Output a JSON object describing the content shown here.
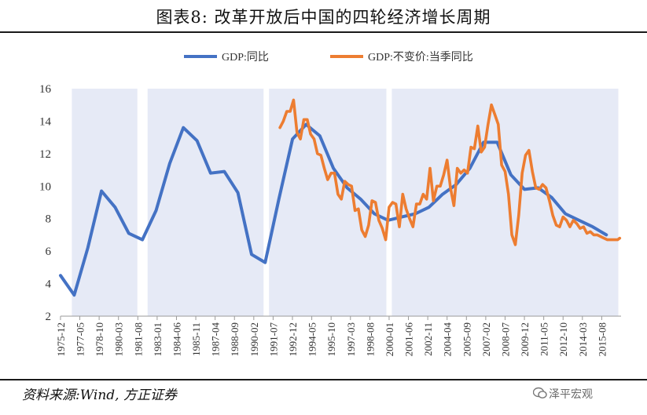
{
  "title": "图表8:   改革开放后中国的四轮经济增长周期",
  "source": "资料来源:Wind, 方正证券",
  "watermark": "泽平宏观",
  "chart_data": {
    "type": "line",
    "title": "图表8:   改革开放后中国的四轮经济增长周期",
    "xlabel": "",
    "ylabel": "",
    "ylim": [
      2,
      16
    ],
    "y_ticks": [
      "2",
      "4",
      "6",
      "8",
      "10",
      "12",
      "14",
      "16"
    ],
    "x_tick_labels": [
      "1975-12",
      "1977-05",
      "1978-10",
      "1980-03",
      "1981-08",
      "1983-01",
      "1984-06",
      "1985-11",
      "1987-04",
      "1988-09",
      "1990-02",
      "1991-07",
      "1992-12",
      "1994-05",
      "1995-10",
      "1997-03",
      "1998-08",
      "2000-01",
      "2001-06",
      "2002-11",
      "2004-04",
      "2005-09",
      "2007-02",
      "2008-07",
      "2009-12",
      "2011-05",
      "2012-10",
      "2014-03",
      "2015-08"
    ],
    "x_range": [
      1975.92,
      2017.0
    ],
    "legend_position": "top-center",
    "shaded_periods": [
      [
        1976.75,
        1981.55
      ],
      [
        1982.3,
        1990.8
      ],
      [
        1991.2,
        1999.8
      ],
      [
        2000.2,
        2016.8
      ]
    ],
    "series": [
      {
        "name": "GDP:同比",
        "color": "#4472C4",
        "points": [
          [
            1975.92,
            4.5
          ],
          [
            1976.92,
            3.3
          ],
          [
            1977.92,
            6.2
          ],
          [
            1978.92,
            9.7
          ],
          [
            1979.92,
            8.7
          ],
          [
            1980.92,
            7.1
          ],
          [
            1981.92,
            6.7
          ],
          [
            1982.92,
            8.5
          ],
          [
            1983.92,
            11.4
          ],
          [
            1984.92,
            13.6
          ],
          [
            1985.92,
            12.8
          ],
          [
            1986.92,
            10.8
          ],
          [
            1987.92,
            10.9
          ],
          [
            1988.92,
            9.6
          ],
          [
            1989.92,
            5.8
          ],
          [
            1990.92,
            5.3
          ],
          [
            1991.92,
            9.2
          ],
          [
            1992.92,
            12.9
          ],
          [
            1993.92,
            13.8
          ],
          [
            1994.92,
            13.1
          ],
          [
            1995.92,
            11.1
          ],
          [
            1996.92,
            9.9
          ],
          [
            1997.92,
            9.2
          ],
          [
            1998.92,
            8.3
          ],
          [
            1999.92,
            7.9
          ],
          [
            2000.92,
            8.1
          ],
          [
            2001.92,
            8.3
          ],
          [
            2002.92,
            8.7
          ],
          [
            2003.92,
            9.5
          ],
          [
            2004.92,
            10.1
          ],
          [
            2005.92,
            11.1
          ],
          [
            2006.92,
            12.7
          ],
          [
            2007.92,
            12.7
          ],
          [
            2008.92,
            10.7
          ],
          [
            2009.92,
            9.8
          ],
          [
            2010.92,
            9.9
          ],
          [
            2011.92,
            9.3
          ],
          [
            2012.92,
            8.3
          ],
          [
            2013.92,
            7.9
          ],
          [
            2014.92,
            7.5
          ],
          [
            2015.92,
            7.0
          ]
        ]
      },
      {
        "name": "GDP:不变价:当季同比",
        "color": "#ED7D31",
        "points": [
          [
            1992.0,
            13.6
          ],
          [
            1992.25,
            14.0
          ],
          [
            1992.5,
            14.6
          ],
          [
            1992.75,
            14.6
          ],
          [
            1993.0,
            15.3
          ],
          [
            1993.25,
            13.3
          ],
          [
            1993.5,
            12.9
          ],
          [
            1993.75,
            14.1
          ],
          [
            1994.0,
            14.1
          ],
          [
            1994.25,
            13.2
          ],
          [
            1994.5,
            12.9
          ],
          [
            1994.75,
            12.0
          ],
          [
            1995.0,
            11.9
          ],
          [
            1995.25,
            11.1
          ],
          [
            1995.5,
            10.4
          ],
          [
            1995.75,
            10.8
          ],
          [
            1996.0,
            10.8
          ],
          [
            1996.25,
            9.5
          ],
          [
            1996.5,
            9.2
          ],
          [
            1996.75,
            10.3
          ],
          [
            1997.0,
            10.1
          ],
          [
            1997.25,
            10.0
          ],
          [
            1997.5,
            8.5
          ],
          [
            1997.75,
            8.6
          ],
          [
            1998.0,
            7.3
          ],
          [
            1998.25,
            6.9
          ],
          [
            1998.5,
            7.6
          ],
          [
            1998.75,
            9.1
          ],
          [
            1999.0,
            9.0
          ],
          [
            1999.25,
            7.9
          ],
          [
            1999.5,
            7.4
          ],
          [
            1999.75,
            6.7
          ],
          [
            2000.0,
            8.7
          ],
          [
            2000.25,
            9.0
          ],
          [
            2000.5,
            8.9
          ],
          [
            2000.75,
            7.5
          ],
          [
            2001.0,
            9.5
          ],
          [
            2001.25,
            8.6
          ],
          [
            2001.5,
            8.0
          ],
          [
            2001.75,
            7.5
          ],
          [
            2002.0,
            8.9
          ],
          [
            2002.25,
            8.9
          ],
          [
            2002.5,
            9.5
          ],
          [
            2002.75,
            9.2
          ],
          [
            2003.0,
            11.1
          ],
          [
            2003.25,
            9.1
          ],
          [
            2003.5,
            10.0
          ],
          [
            2003.75,
            10.0
          ],
          [
            2004.0,
            10.7
          ],
          [
            2004.25,
            11.6
          ],
          [
            2004.5,
            9.9
          ],
          [
            2004.75,
            8.8
          ],
          [
            2005.0,
            11.1
          ],
          [
            2005.25,
            10.8
          ],
          [
            2005.5,
            11.0
          ],
          [
            2005.75,
            10.8
          ],
          [
            2006.0,
            12.4
          ],
          [
            2006.25,
            12.3
          ],
          [
            2006.5,
            13.7
          ],
          [
            2006.75,
            12.1
          ],
          [
            2007.0,
            12.4
          ],
          [
            2007.25,
            13.8
          ],
          [
            2007.5,
            15.0
          ],
          [
            2007.75,
            14.4
          ],
          [
            2008.0,
            13.8
          ],
          [
            2008.25,
            11.3
          ],
          [
            2008.5,
            10.9
          ],
          [
            2008.75,
            9.5
          ],
          [
            2009.0,
            7.0
          ],
          [
            2009.25,
            6.4
          ],
          [
            2009.5,
            8.2
          ],
          [
            2009.75,
            10.8
          ],
          [
            2010.0,
            11.9
          ],
          [
            2010.25,
            12.2
          ],
          [
            2010.5,
            10.9
          ],
          [
            2010.75,
            9.9
          ],
          [
            2011.0,
            9.8
          ],
          [
            2011.25,
            10.1
          ],
          [
            2011.5,
            9.9
          ],
          [
            2011.75,
            9.1
          ],
          [
            2012.0,
            8.2
          ],
          [
            2012.25,
            7.6
          ],
          [
            2012.5,
            7.5
          ],
          [
            2012.75,
            8.1
          ],
          [
            2013.0,
            7.9
          ],
          [
            2013.25,
            7.5
          ],
          [
            2013.5,
            7.9
          ],
          [
            2013.75,
            7.7
          ],
          [
            2014.0,
            7.4
          ],
          [
            2014.25,
            7.5
          ],
          [
            2014.5,
            7.1
          ],
          [
            2014.75,
            7.2
          ],
          [
            2015.0,
            7.0
          ],
          [
            2015.25,
            7.0
          ],
          [
            2015.5,
            6.9
          ],
          [
            2015.75,
            6.8
          ],
          [
            2016.0,
            6.7
          ],
          [
            2016.25,
            6.7
          ],
          [
            2016.5,
            6.7
          ],
          [
            2016.75,
            6.7
          ],
          [
            2016.9,
            6.8
          ]
        ]
      }
    ]
  }
}
